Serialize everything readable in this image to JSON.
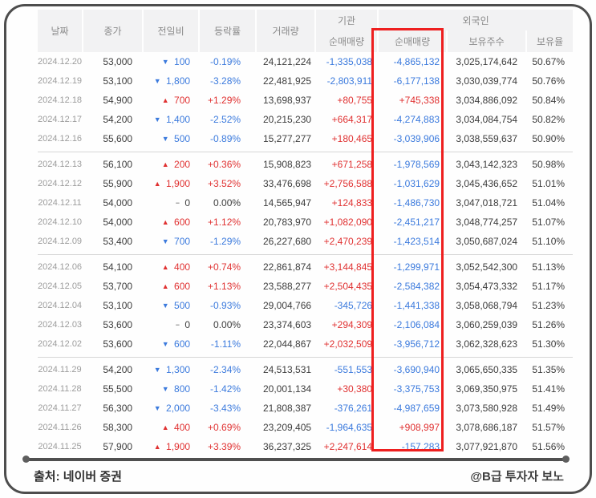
{
  "table": {
    "header": {
      "date": "날짜",
      "close": "종가",
      "change": "전일비",
      "rate": "등락률",
      "volume": "거래량",
      "institution_group": "기관",
      "foreigner_group": "외국인",
      "institution_net": "순매매량",
      "foreigner_net": "순매매량",
      "shares_held": "보유주수",
      "holding_ratio": "보유율"
    },
    "icons": {
      "up_triangle": "▲",
      "down_triangle": "▼",
      "flat_dash": "−"
    },
    "groups": [
      [
        {
          "date": "2024.12.20",
          "close": "53,000",
          "change_dir": "down",
          "change_value": "100",
          "rate": "-0.19%",
          "volume": "24,121,224",
          "institution_net": "-1,335,038",
          "foreigner_net": "-4,865,132",
          "shares_held": "3,025,174,642",
          "holding_ratio": "50.67%"
        },
        {
          "date": "2024.12.19",
          "close": "53,100",
          "change_dir": "down",
          "change_value": "1,800",
          "rate": "-3.28%",
          "volume": "22,481,925",
          "institution_net": "-2,803,911",
          "foreigner_net": "-6,177,138",
          "shares_held": "3,030,039,774",
          "holding_ratio": "50.76%"
        },
        {
          "date": "2024.12.18",
          "close": "54,900",
          "change_dir": "up",
          "change_value": "700",
          "rate": "+1.29%",
          "volume": "13,698,937",
          "institution_net": "+80,755",
          "foreigner_net": "+745,338",
          "shares_held": "3,034,886,092",
          "holding_ratio": "50.84%"
        },
        {
          "date": "2024.12.17",
          "close": "54,200",
          "change_dir": "down",
          "change_value": "1,400",
          "rate": "-2.52%",
          "volume": "20,215,230",
          "institution_net": "+664,317",
          "foreigner_net": "-4,274,883",
          "shares_held": "3,034,084,754",
          "holding_ratio": "50.82%"
        },
        {
          "date": "2024.12.16",
          "close": "55,600",
          "change_dir": "down",
          "change_value": "500",
          "rate": "-0.89%",
          "volume": "15,277,277",
          "institution_net": "+180,465",
          "foreigner_net": "-3,039,906",
          "shares_held": "3,038,559,637",
          "holding_ratio": "50.90%"
        }
      ],
      [
        {
          "date": "2024.12.13",
          "close": "56,100",
          "change_dir": "up",
          "change_value": "200",
          "rate": "+0.36%",
          "volume": "15,908,823",
          "institution_net": "+671,258",
          "foreigner_net": "-1,978,569",
          "shares_held": "3,043,142,323",
          "holding_ratio": "50.98%"
        },
        {
          "date": "2024.12.12",
          "close": "55,900",
          "change_dir": "up",
          "change_value": "1,900",
          "rate": "+3.52%",
          "volume": "33,476,698",
          "institution_net": "+2,756,588",
          "foreigner_net": "-1,031,629",
          "shares_held": "3,045,436,652",
          "holding_ratio": "51.01%"
        },
        {
          "date": "2024.12.11",
          "close": "54,000",
          "change_dir": "flat",
          "change_value": "0",
          "rate": "0.00%",
          "volume": "14,565,947",
          "institution_net": "+124,833",
          "foreigner_net": "-1,486,730",
          "shares_held": "3,047,018,721",
          "holding_ratio": "51.04%"
        },
        {
          "date": "2024.12.10",
          "close": "54,000",
          "change_dir": "up",
          "change_value": "600",
          "rate": "+1.12%",
          "volume": "20,783,970",
          "institution_net": "+1,082,090",
          "foreigner_net": "-2,451,217",
          "shares_held": "3,048,774,257",
          "holding_ratio": "51.07%"
        },
        {
          "date": "2024.12.09",
          "close": "53,400",
          "change_dir": "down",
          "change_value": "700",
          "rate": "-1.29%",
          "volume": "26,227,680",
          "institution_net": "+2,470,239",
          "foreigner_net": "-1,423,514",
          "shares_held": "3,050,687,024",
          "holding_ratio": "51.10%"
        }
      ],
      [
        {
          "date": "2024.12.06",
          "close": "54,100",
          "change_dir": "up",
          "change_value": "400",
          "rate": "+0.74%",
          "volume": "22,861,874",
          "institution_net": "+3,144,845",
          "foreigner_net": "-1,299,971",
          "shares_held": "3,052,542,300",
          "holding_ratio": "51.13%"
        },
        {
          "date": "2024.12.05",
          "close": "53,700",
          "change_dir": "up",
          "change_value": "600",
          "rate": "+1.13%",
          "volume": "23,588,277",
          "institution_net": "+2,504,435",
          "foreigner_net": "-2,584,382",
          "shares_held": "3,054,473,332",
          "holding_ratio": "51.17%"
        },
        {
          "date": "2024.12.04",
          "close": "53,100",
          "change_dir": "down",
          "change_value": "500",
          "rate": "-0.93%",
          "volume": "29,004,766",
          "institution_net": "-345,726",
          "foreigner_net": "-1,441,338",
          "shares_held": "3,058,068,794",
          "holding_ratio": "51.23%"
        },
        {
          "date": "2024.12.03",
          "close": "53,600",
          "change_dir": "flat",
          "change_value": "0",
          "rate": "0.00%",
          "volume": "23,374,603",
          "institution_net": "+294,309",
          "foreigner_net": "-2,106,084",
          "shares_held": "3,060,259,039",
          "holding_ratio": "51.26%"
        },
        {
          "date": "2024.12.02",
          "close": "53,600",
          "change_dir": "down",
          "change_value": "600",
          "rate": "-1.11%",
          "volume": "22,044,867",
          "institution_net": "+2,032,509",
          "foreigner_net": "-3,956,712",
          "shares_held": "3,062,328,623",
          "holding_ratio": "51.30%"
        }
      ],
      [
        {
          "date": "2024.11.29",
          "close": "54,200",
          "change_dir": "down",
          "change_value": "1,300",
          "rate": "-2.34%",
          "volume": "24,513,531",
          "institution_net": "-551,553",
          "foreigner_net": "-3,690,940",
          "shares_held": "3,065,650,335",
          "holding_ratio": "51.35%"
        },
        {
          "date": "2024.11.28",
          "close": "55,500",
          "change_dir": "down",
          "change_value": "800",
          "rate": "-1.42%",
          "volume": "20,001,134",
          "institution_net": "+30,380",
          "foreigner_net": "-3,375,753",
          "shares_held": "3,069,350,975",
          "holding_ratio": "51.41%"
        },
        {
          "date": "2024.11.27",
          "close": "56,300",
          "change_dir": "down",
          "change_value": "2,000",
          "rate": "-3.43%",
          "volume": "21,808,387",
          "institution_net": "-376,261",
          "foreigner_net": "-4,987,659",
          "shares_held": "3,073,580,928",
          "holding_ratio": "51.49%"
        },
        {
          "date": "2024.11.26",
          "close": "58,300",
          "change_dir": "up",
          "change_value": "400",
          "rate": "+0.69%",
          "volume": "23,209,405",
          "institution_net": "-1,964,635",
          "foreigner_net": "+908,997",
          "shares_held": "3,078,686,187",
          "holding_ratio": "51.57%"
        },
        {
          "date": "2024.11.25",
          "close": "57,900",
          "change_dir": "up",
          "change_value": "1,900",
          "rate": "+3.39%",
          "volume": "36,237,325",
          "institution_net": "+2,247,614",
          "foreigner_net": "-157,283",
          "shares_held": "3,077,921,870",
          "holding_ratio": "51.56%"
        }
      ]
    ]
  },
  "footer": {
    "source": "출처: 네이버 증권",
    "credit": "@B급 투자자 보노"
  },
  "colors": {
    "up_red": "#e03131",
    "down_blue": "#3b7add",
    "highlight_box_red": "#ee1f1f",
    "header_bg": "#f2f2f3",
    "card_border": "#4d4d4d"
  }
}
